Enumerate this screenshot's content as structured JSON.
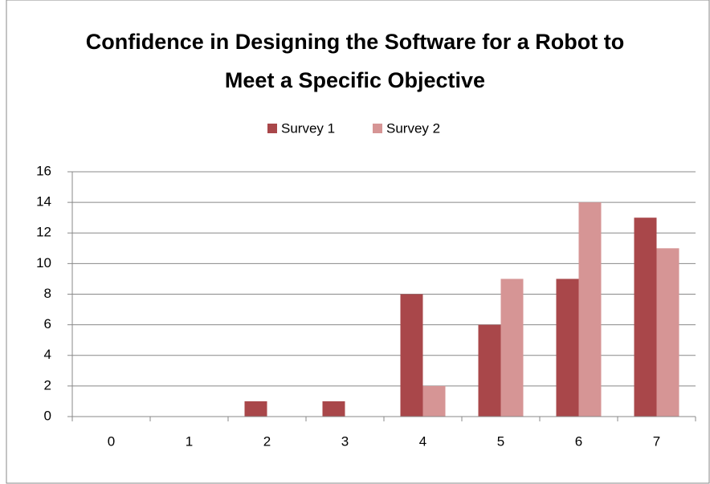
{
  "chart_data": {
    "type": "bar",
    "title": "Confidence in Designing the Software for a Robot to Meet a Specific Objective",
    "categories": [
      "0",
      "1",
      "2",
      "3",
      "4",
      "5",
      "6",
      "7"
    ],
    "series": [
      {
        "name": "Survey 1",
        "color": "#a9474a",
        "values": [
          0,
          0,
          1,
          1,
          8,
          6,
          9,
          13
        ]
      },
      {
        "name": "Survey 2",
        "color": "#d69595",
        "values": [
          0,
          0,
          0,
          0,
          2,
          9,
          14,
          11
        ]
      }
    ],
    "ylim": [
      0,
      16
    ],
    "yticks": [
      0,
      2,
      4,
      6,
      8,
      10,
      12,
      14,
      16
    ],
    "grid": true,
    "legend": "top"
  }
}
